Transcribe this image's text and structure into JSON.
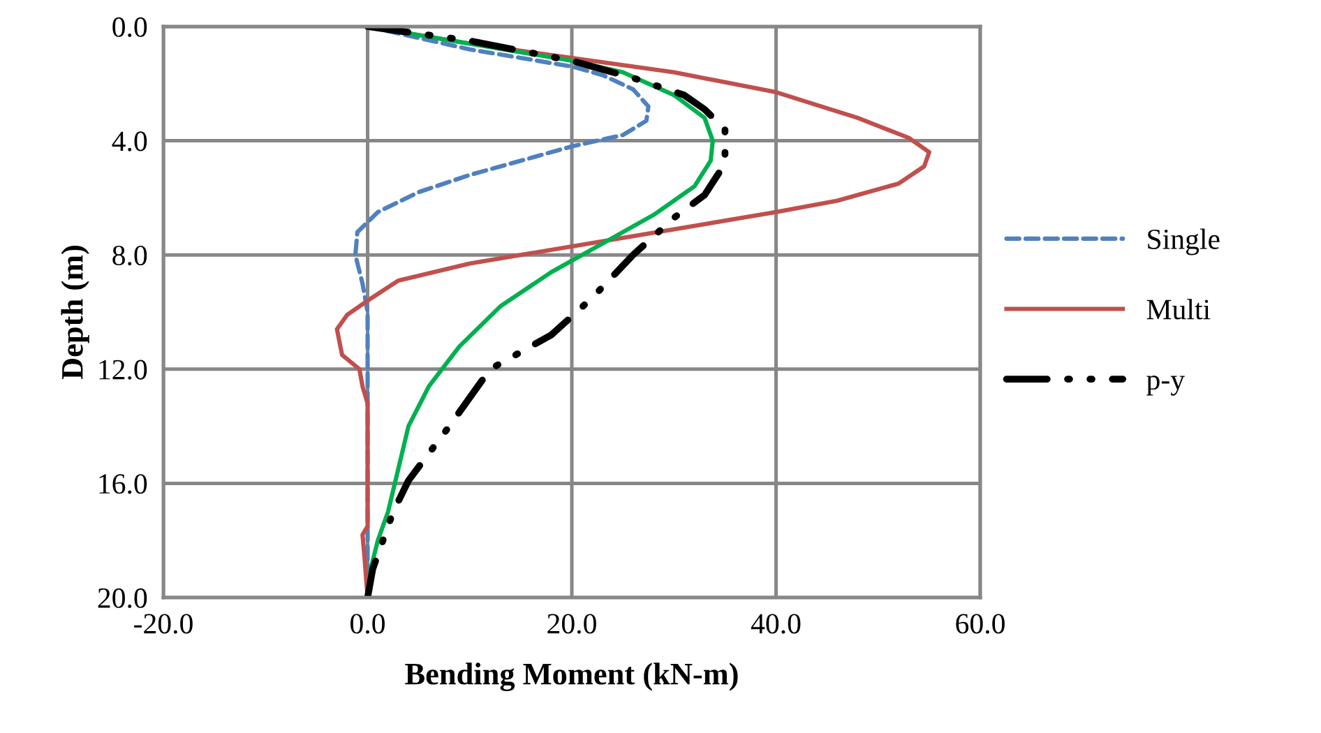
{
  "chart_data": {
    "type": "line",
    "xlabel": "Bending Moment (kN-m)",
    "ylabel": "Depth (m)",
    "xlim": [
      -20,
      60
    ],
    "xticks": [
      {
        "value": -20,
        "label": "-20.0"
      },
      {
        "value": 0,
        "label": "0.0"
      },
      {
        "value": 20,
        "label": "20.0"
      },
      {
        "value": 40,
        "label": "40.0"
      },
      {
        "value": 60,
        "label": "60.0"
      }
    ],
    "ylim": [
      20,
      0
    ],
    "yticks": [
      {
        "value": 0,
        "label": "0.0"
      },
      {
        "value": 4,
        "label": "4.0"
      },
      {
        "value": 8,
        "label": "8.0"
      },
      {
        "value": 12,
        "label": "12.0"
      },
      {
        "value": 16,
        "label": "16.0"
      },
      {
        "value": 20,
        "label": "20.0"
      }
    ],
    "grid": true,
    "legend": "right",
    "marker": "none",
    "series": [
      {
        "name": "Single",
        "color": "#4f81bd",
        "line_style": "dashed",
        "x": [
          0,
          5,
          10,
          15,
          20,
          23,
          26,
          27.5,
          27.3,
          25,
          20,
          15,
          10,
          5,
          1,
          -1,
          -1.2,
          -0.5,
          0,
          0,
          0,
          0,
          0,
          0
        ],
        "values": [
          0,
          0.4,
          0.8,
          1.1,
          1.4,
          1.7,
          2.2,
          2.8,
          3.3,
          3.8,
          4.2,
          4.7,
          5.2,
          5.8,
          6.5,
          7.2,
          8,
          9,
          10,
          12,
          13.5,
          16,
          18.5,
          20
        ]
      },
      {
        "name": "Multi",
        "color": "#c0504d",
        "line_style": "solid",
        "x": [
          0,
          10,
          20,
          30,
          40,
          48,
          53,
          55,
          54.5,
          52,
          46,
          40,
          30,
          20,
          10,
          3,
          0,
          -2,
          -3,
          -2.5,
          -0.8,
          -0.5,
          0,
          0,
          0,
          -0.5,
          -0.3,
          0
        ],
        "values": [
          0,
          0.6,
          1.1,
          1.6,
          2.3,
          3.2,
          3.9,
          4.4,
          4.9,
          5.5,
          6.1,
          6.5,
          7.1,
          7.7,
          8.3,
          8.9,
          9.6,
          10.1,
          10.6,
          11.5,
          12,
          12.6,
          13.2,
          15,
          17.5,
          17.8,
          18.6,
          20
        ]
      },
      {
        "color": "#00b050",
        "line_style": "solid",
        "x": [
          0,
          10,
          20,
          25,
          30,
          33,
          33.8,
          33.6,
          32,
          28,
          23,
          18,
          13,
          9,
          6,
          4,
          3,
          2,
          1,
          0.3,
          0
        ],
        "values": [
          0,
          0.6,
          1.2,
          1.6,
          2.4,
          3.2,
          4,
          4.7,
          5.6,
          6.6,
          7.6,
          8.6,
          9.8,
          11.2,
          12.6,
          14,
          15.5,
          17,
          18,
          19,
          20
        ]
      },
      {
        "name": "p-y",
        "color": "#000000",
        "line_style": "dashdot",
        "x": [
          0,
          10,
          20,
          26,
          31,
          33,
          35,
          35,
          33,
          30,
          26,
          22,
          18,
          12,
          8,
          4,
          2.5,
          1.5,
          0.5,
          0
        ],
        "values": [
          0,
          0.5,
          1.2,
          1.8,
          2.4,
          2.9,
          3.6,
          4.8,
          5.9,
          6.7,
          8,
          9.5,
          10.8,
          12,
          14,
          15.9,
          17,
          18,
          19,
          20
        ]
      }
    ]
  }
}
